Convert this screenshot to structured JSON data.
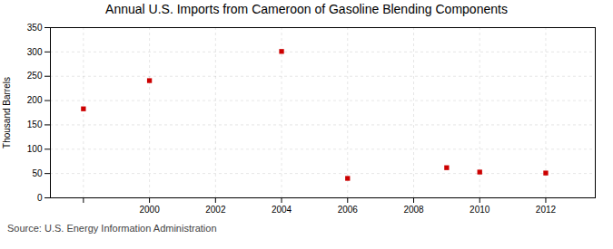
{
  "chart_data": {
    "type": "scatter",
    "title": "Annual U.S. Imports from Cameroon of Gasoline Blending Components",
    "ylabel": "Thousand Barrels",
    "source": "Source: U.S. Energy Information Administration",
    "x": [
      1998,
      2000,
      2004,
      2006,
      2009,
      2010,
      2012
    ],
    "values": [
      183,
      241,
      301,
      40,
      62,
      53,
      51
    ],
    "color": "#cc0000",
    "marker": "square",
    "xlim": [
      1997,
      2013.5
    ],
    "ylim": [
      0,
      350
    ],
    "xticks": [
      {
        "value": 1998,
        "label": ""
      },
      2000,
      2002,
      2004,
      2006,
      2008,
      2010,
      2012
    ],
    "yticks": [
      0,
      50,
      100,
      150,
      200,
      250,
      300,
      350
    ],
    "grid": true
  }
}
